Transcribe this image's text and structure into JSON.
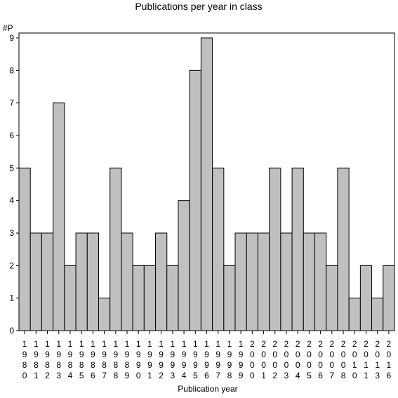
{
  "chart_data": {
    "type": "bar",
    "title": "Publications per year in class",
    "xlabel": "Publication year",
    "ylabel": "#P",
    "ylim": [
      0,
      9
    ],
    "yticks": [
      0,
      1,
      2,
      3,
      4,
      5,
      6,
      7,
      8,
      9
    ],
    "grid": false,
    "bar_color": "#c0c0c0",
    "categories": [
      "1980",
      "1981",
      "1982",
      "1983",
      "1984",
      "1985",
      "1986",
      "1987",
      "1988",
      "1989",
      "1990",
      "1991",
      "1992",
      "1993",
      "1994",
      "1995",
      "1996",
      "1997",
      "1998",
      "1999",
      "2000",
      "2001",
      "2002",
      "2003",
      "2004",
      "2005",
      "2006",
      "2007",
      "2008",
      "2010",
      "2011",
      "2013",
      "2016"
    ],
    "values": [
      5,
      3,
      3,
      7,
      2,
      3,
      3,
      1,
      5,
      3,
      2,
      2,
      3,
      2,
      4,
      8,
      9,
      5,
      2,
      3,
      3,
      3,
      5,
      3,
      5,
      3,
      3,
      2,
      5,
      1,
      2,
      1,
      2
    ]
  }
}
